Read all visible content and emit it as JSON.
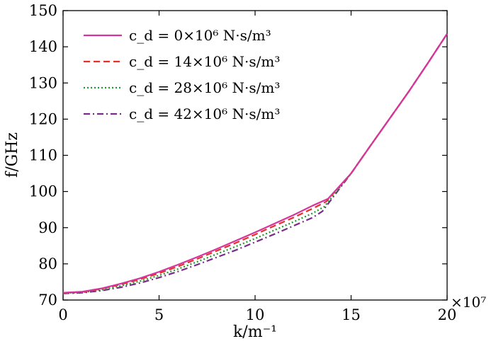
{
  "chart_data": {
    "type": "line",
    "xlabel": "k/m⁻¹",
    "ylabel": "f/GHz",
    "x_multiplier": "×10⁷",
    "xlim": [
      0,
      20
    ],
    "ylim": [
      70,
      150
    ],
    "xticks": [
      0,
      5,
      10,
      15,
      20
    ],
    "yticks": [
      70,
      80,
      90,
      100,
      110,
      120,
      130,
      140,
      150
    ],
    "grid": false,
    "legend_position": "top-left",
    "series": [
      {
        "name": "c_d = 0×10⁶ N·s/m³",
        "color": "#d6339c",
        "dash": "solid",
        "x": [
          0,
          1,
          2,
          3,
          4,
          5,
          6,
          7,
          8,
          9,
          10,
          11,
          12,
          13,
          13.8,
          15,
          16,
          17,
          18,
          19,
          20
        ],
        "y": [
          72.0,
          72.3,
          73.2,
          74.5,
          76.0,
          77.8,
          79.8,
          81.9,
          84.1,
          86.4,
          88.7,
          91.1,
          93.5,
          96.1,
          98.0,
          105.0,
          112.6,
          120.1,
          127.6,
          135.5,
          143.6
        ]
      },
      {
        "name": "c_d = 14×10⁶ N·s/m³",
        "color": "#e8302a",
        "dash": "dashed",
        "x": [
          0,
          1,
          2,
          3,
          4,
          5,
          6,
          7,
          8,
          9,
          10,
          11,
          12,
          13,
          13.7,
          15,
          16,
          17,
          18,
          19,
          20
        ],
        "y": [
          72.0,
          72.2,
          73.1,
          74.3,
          75.7,
          77.4,
          79.3,
          81.4,
          83.6,
          85.8,
          88.1,
          90.5,
          92.8,
          95.3,
          97.2,
          105.0,
          112.6,
          120.1,
          127.6,
          135.5,
          143.6
        ]
      },
      {
        "name": "c_d = 28×10⁶ N·s/m³",
        "color": "#1e9a2a",
        "dash": "dotted",
        "x": [
          0,
          1,
          2,
          3,
          4,
          5,
          6,
          7,
          8,
          9,
          10,
          11,
          12,
          13,
          13.6,
          15,
          16,
          17,
          18,
          19,
          20
        ],
        "y": [
          71.9,
          72.1,
          72.8,
          73.9,
          75.2,
          76.8,
          78.6,
          80.6,
          82.7,
          84.8,
          87.0,
          89.3,
          91.6,
          94.0,
          95.8,
          105.0,
          112.6,
          120.1,
          127.6,
          135.5,
          143.6
        ]
      },
      {
        "name": "c_d = 42×10⁶ N·s/m³",
        "color": "#7a2a8a",
        "dash": "dashdot",
        "x": [
          0,
          1,
          2,
          3,
          4,
          5,
          6,
          7,
          8,
          9,
          10,
          11,
          12,
          13,
          13.5,
          15,
          16,
          17,
          18,
          19,
          20
        ],
        "y": [
          71.8,
          72.0,
          72.6,
          73.5,
          74.7,
          76.2,
          77.9,
          79.8,
          81.8,
          83.8,
          86.0,
          88.2,
          90.5,
          92.8,
          94.5,
          105.0,
          112.6,
          120.1,
          127.6,
          135.5,
          143.6
        ]
      }
    ]
  }
}
